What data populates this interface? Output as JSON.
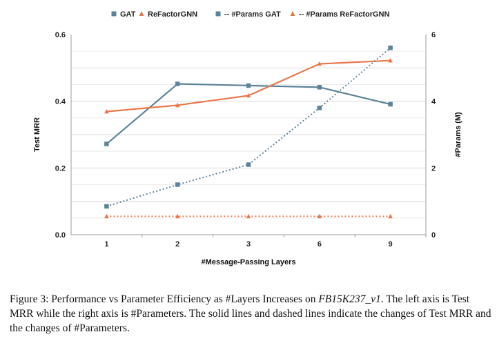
{
  "chart_data": {
    "type": "line",
    "categories": [
      "1",
      "2",
      "3",
      "6",
      "9"
    ],
    "xlabel": "#Message-Passing Layers",
    "ylabel": "Test MRR",
    "y2label": "#Params (M)",
    "ylim": [
      0,
      0.6
    ],
    "yticks": [
      "0.0",
      "0.2",
      "0.4",
      "0.6"
    ],
    "y2lim": [
      0,
      6
    ],
    "y2ticks": [
      "0",
      "2",
      "4",
      "6"
    ],
    "grid": true,
    "legend_position": "top",
    "series": [
      {
        "name": "GAT",
        "axis": "left",
        "style": "solid",
        "marker": "square",
        "color": "#5b8399",
        "values": [
          0.272,
          0.452,
          0.447,
          0.442,
          0.391
        ]
      },
      {
        "name": "ReFactorGNN",
        "axis": "left",
        "style": "solid",
        "marker": "triangle",
        "color": "#e8784a",
        "values": [
          0.369,
          0.388,
          0.417,
          0.512,
          0.522
        ]
      },
      {
        "name": "-- #Params GAT",
        "axis": "right",
        "style": "dotted",
        "marker": "square",
        "color": "#5b8399",
        "values": [
          0.85,
          1.5,
          2.1,
          3.8,
          5.6
        ]
      },
      {
        "name": "-- #Params ReFactorGNN",
        "axis": "right",
        "style": "dotted",
        "marker": "triangle",
        "color": "#e8784a",
        "values": [
          0.55,
          0.55,
          0.55,
          0.55,
          0.55
        ]
      }
    ]
  },
  "caption": {
    "prefix": "Figure 3: Performance vs Parameter Efficiency as #Layers Increases on ",
    "dataset": "FB15K237_v1",
    "suffix": ". The left axis is Test MRR while the right axis is #Parameters. The solid lines and dashed lines indicate the changes of Test MRR and the changes of #Parameters."
  }
}
